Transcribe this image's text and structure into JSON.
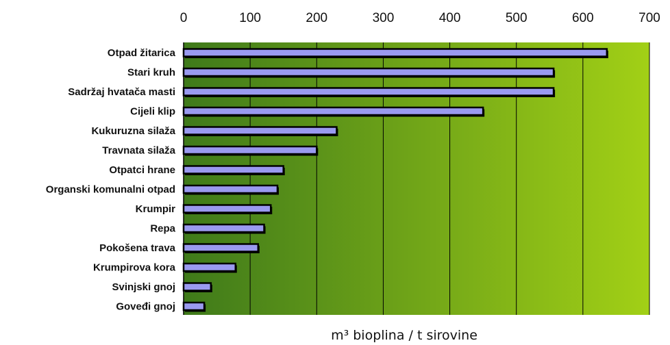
{
  "chart_data": {
    "type": "bar",
    "orientation": "horizontal",
    "categories": [
      "Otpad žitarica",
      "Stari kruh",
      "Sadržaj hvatača masti",
      "Cijeli klip",
      "Kukuruzna silaža",
      "Travnata silaža",
      "Otpatci hrane",
      "Organski komunalni otpad",
      "Krumpir",
      "Repa",
      "Pokošena trava",
      "Krumpirova kora",
      "Svinjski gnoj",
      "Goveđi gnoj"
    ],
    "values": [
      636,
      556,
      556,
      450,
      230,
      200,
      150,
      141,
      131,
      121,
      112,
      78,
      41,
      31
    ],
    "xlim": [
      0,
      700
    ],
    "xticks": [
      "0",
      "100",
      "200",
      "300",
      "400",
      "500",
      "600",
      "700"
    ],
    "xlabel": "m³ bioplina / t sirovine",
    "xaxis_position": "top",
    "grid": true,
    "colors": {
      "plot_bg_start": "#3f7a1a",
      "plot_bg_end": "#a2d016",
      "bar_fill": "#9a9af0",
      "bar_outline": "#000000",
      "gridline": "#000000"
    }
  }
}
